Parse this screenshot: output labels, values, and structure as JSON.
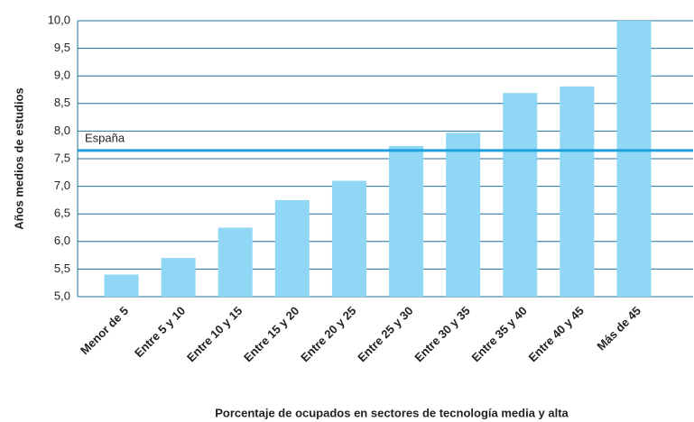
{
  "chart_data": {
    "type": "bar",
    "y_axis_label": "Años medios de estudios",
    "x_axis_label": "Porcentaje de ocupados en sectores de tecnología media y alta",
    "categories": [
      "Menor de 5",
      "Entre 5 y 10",
      "Entre 10 y 15",
      "Entre 15 y 20",
      "Entre 20 y 25",
      "Entre 25 y 30",
      "Entre 30 y 35",
      "Entre 35 y 40",
      "Entre 40 y 45",
      "Más de 45"
    ],
    "values": [
      5.4,
      5.7,
      6.25,
      6.75,
      7.1,
      7.73,
      7.97,
      8.69,
      8.81,
      10.0
    ],
    "color": "#8fd7f4",
    "ylim": [
      5.0,
      10.0
    ],
    "yticks": [
      {
        "value": 5.0,
        "label": "5,0"
      },
      {
        "value": 5.5,
        "label": "5,5"
      },
      {
        "value": 6.0,
        "label": "6,0"
      },
      {
        "value": 6.5,
        "label": "6,5"
      },
      {
        "value": 7.0,
        "label": "7,0"
      },
      {
        "value": 7.5,
        "label": "7,5"
      },
      {
        "value": 8.0,
        "label": "8,0"
      },
      {
        "value": 8.5,
        "label": "8,5"
      },
      {
        "value": 9.0,
        "label": "9,0"
      },
      {
        "value": 9.5,
        "label": "9,5"
      },
      {
        "value": 10.0,
        "label": "10,0"
      }
    ],
    "grid": true,
    "reference_line": {
      "value": 7.65,
      "label": "España",
      "color": "#1ba1dd"
    }
  }
}
